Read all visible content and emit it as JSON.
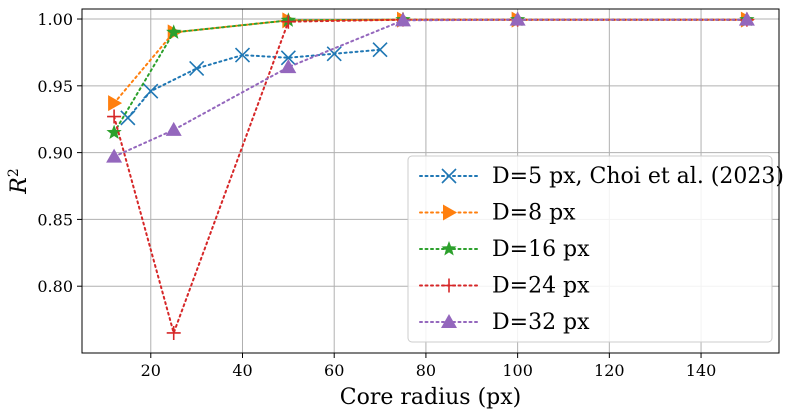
{
  "chart_data": {
    "type": "line",
    "title": "",
    "xlabel": "Core radius (px)",
    "ylabel": "R",
    "ylabel_superscript": "2",
    "xlim": [
      5,
      157
    ],
    "ylim": [
      0.75,
      1.0075
    ],
    "xticks": [
      20,
      40,
      60,
      80,
      100,
      120,
      140
    ],
    "yticks": [
      0.8,
      0.85,
      0.9,
      0.95,
      1.0
    ],
    "xtick_labels": [
      "20",
      "40",
      "60",
      "80",
      "100",
      "120",
      "140"
    ],
    "ytick_labels": [
      "0.80",
      "0.85",
      "0.90",
      "0.95",
      "1.00"
    ],
    "grid": true,
    "legend_position": "lower-right",
    "line_style": "dotted",
    "series": [
      {
        "name": "D=5 px, Choi et al. (2023)",
        "color": "#1f77b4",
        "marker": "x",
        "x": [
          15,
          20,
          30,
          40,
          50,
          60,
          70
        ],
        "y": [
          0.926,
          0.946,
          0.963,
          0.973,
          0.971,
          0.974,
          0.977
        ]
      },
      {
        "name": "D=8 px",
        "color": "#ff7f0e",
        "marker": "triangle-right",
        "x": [
          12,
          25,
          50,
          75,
          100,
          150
        ],
        "y": [
          0.937,
          0.99,
          0.999,
          0.9995,
          0.9995,
          0.9995
        ]
      },
      {
        "name": "D=16 px",
        "color": "#2ca02c",
        "marker": "star",
        "x": [
          12,
          25,
          50,
          75,
          100,
          150
        ],
        "y": [
          0.915,
          0.99,
          0.999,
          0.9995,
          0.9995,
          0.9995
        ]
      },
      {
        "name": "D=24 px",
        "color": "#d62728",
        "marker": "plus",
        "x": [
          12,
          25,
          50,
          75,
          100,
          150
        ],
        "y": [
          0.927,
          0.765,
          0.998,
          0.9995,
          0.9995,
          0.9995
        ]
      },
      {
        "name": "D=32 px",
        "color": "#9467bd",
        "marker": "triangle-up",
        "x": [
          12,
          25,
          50,
          75,
          100,
          150
        ],
        "y": [
          0.897,
          0.917,
          0.964,
          0.999,
          0.9995,
          0.9995
        ]
      }
    ]
  }
}
